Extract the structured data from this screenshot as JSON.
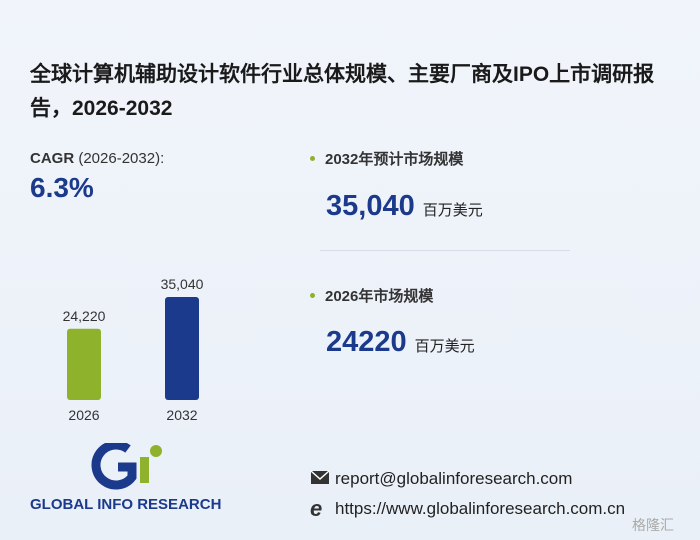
{
  "title": "全球计算机辅助设计软件行业总体规模、主要厂商及IPO上市调研报告，2026-2032",
  "cagr": {
    "label": "CAGR",
    "period": "(2026-2032):",
    "value": "6.3%"
  },
  "stats": [
    {
      "label": "2032年预计市场规模",
      "value": "35,040",
      "unit": "百万美元"
    },
    {
      "label": "2026年市场规模",
      "value": "24220",
      "unit": "百万美元"
    }
  ],
  "chart_data": {
    "type": "bar",
    "categories": [
      "2026",
      "2032"
    ],
    "values": [
      24220,
      35040
    ],
    "value_labels": [
      "24,220",
      "35,040"
    ],
    "colors": [
      "#8fb22c",
      "#1c3a8c"
    ]
  },
  "logo": {
    "text": "GLOBAL INFO RESEARCH"
  },
  "contact": {
    "email": "report@globalinforesearch.com",
    "website": "https://www.globalinforesearch.com.cn"
  },
  "corner_mark": "格隆汇"
}
